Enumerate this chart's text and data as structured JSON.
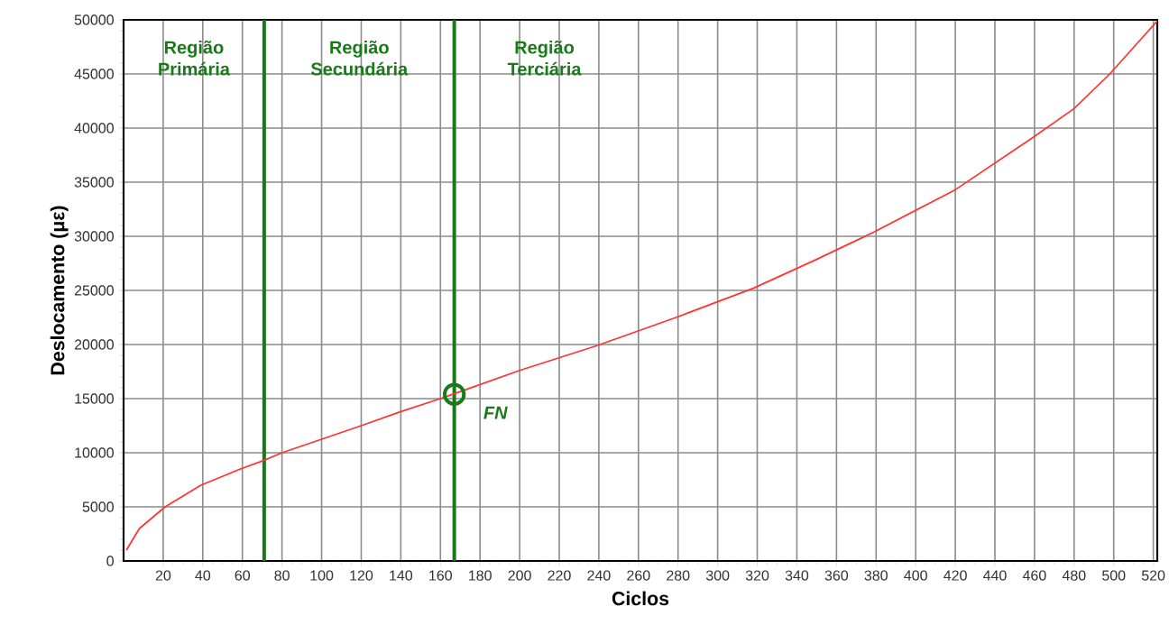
{
  "chart_data": {
    "type": "line",
    "xlabel": "Ciclos",
    "ylabel": "Deslocamento (με)",
    "xlim": [
      0,
      522
    ],
    "ylim": [
      0,
      50000
    ],
    "xticks": [
      20,
      40,
      60,
      80,
      100,
      120,
      140,
      160,
      180,
      200,
      220,
      240,
      260,
      280,
      300,
      320,
      340,
      360,
      380,
      400,
      420,
      440,
      460,
      480,
      500,
      520
    ],
    "yticks": [
      0,
      5000,
      10000,
      15000,
      20000,
      25000,
      30000,
      35000,
      40000,
      45000,
      50000
    ],
    "grid": true,
    "series": [
      {
        "color": "#ff3333",
        "x": [
          1.4,
          8,
          21,
          39,
          59,
          71,
          80,
          120,
          140,
          160,
          200,
          239,
          279,
          318,
          348,
          371,
          379,
          420,
          459,
          480,
          498,
          522
        ],
        "values": [
          1000,
          3000,
          5000,
          7000,
          8500,
          9300,
          10000,
          12500,
          13800,
          15000,
          17600,
          19900,
          22500,
          25200,
          27700,
          29700,
          30400,
          34300,
          39100,
          41800,
          45000,
          49900
        ]
      },
      {
        "type": "scatter",
        "marker": "circle",
        "color": "#1a7a1a",
        "x": [
          167
        ],
        "values": [
          15400
        ]
      }
    ],
    "ref_lines": [
      {
        "axis": "x",
        "value": 71,
        "color": "#1a7a1a"
      },
      {
        "axis": "x",
        "value": 167,
        "color": "#1a7a1a"
      }
    ],
    "annotations": [
      "Região Primária",
      "Região Secundária",
      "Região Terciária",
      {
        "text": "FN",
        "x": 167,
        "y": 15400
      }
    ]
  }
}
